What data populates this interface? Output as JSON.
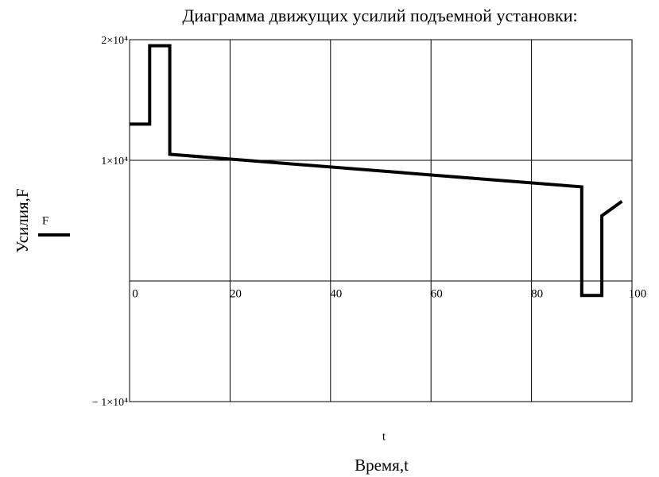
{
  "chart_data": {
    "type": "line",
    "title": "Диаграмма движущих усилий подъемной установки:",
    "x_label": "Время,t",
    "x_variable": "t",
    "y_label": "Усилия,F",
    "x": [
      0,
      4,
      4,
      8,
      8,
      90,
      90,
      94,
      94,
      98
    ],
    "series": [
      {
        "name": "F",
        "color": "#000000",
        "values": [
          13000,
          13000,
          19500,
          19500,
          10500,
          7800,
          -1200,
          -1200,
          5400,
          6600
        ]
      }
    ],
    "xlim": [
      0,
      100
    ],
    "xticks": [
      0,
      20,
      40,
      60,
      80,
      100
    ],
    "ylim": [
      -10000,
      20000
    ],
    "yticks": [
      {
        "value": -10000,
        "label": "− 1×10⁴"
      },
      {
        "value": 10000,
        "label": "1×10⁴"
      },
      {
        "value": 20000,
        "label": "2×10⁴"
      }
    ],
    "grid": true
  }
}
